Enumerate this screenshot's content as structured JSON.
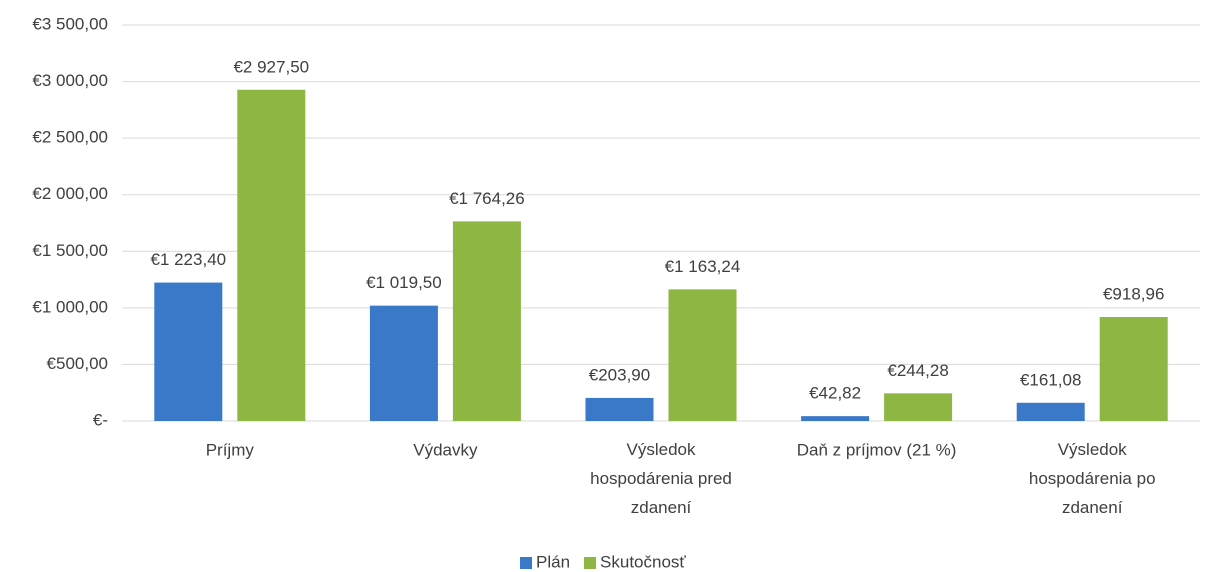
{
  "chart_data": {
    "type": "bar",
    "categories": [
      "Príjmy",
      "Výdavky",
      "Výsledok hospodárenia pred zdanení",
      "Daň z príjmov (21 %)",
      "Výsledok hospodárenia po zdanení"
    ],
    "series": [
      {
        "name": "Plán",
        "color": "#3a78c8",
        "values": [
          1223.4,
          1019.5,
          203.9,
          42.82,
          161.08
        ],
        "value_labels": [
          "€1 223,40",
          "€1 019,50",
          "€203,90",
          "€42,82",
          "€161,08"
        ]
      },
      {
        "name": "Skutočnosť",
        "color": "#8db642",
        "values": [
          2927.5,
          1764.26,
          1163.24,
          244.28,
          918.96
        ],
        "value_labels": [
          "€2 927,50",
          "€1 764,26",
          "€1 163,24",
          "€244,28",
          "€918,96"
        ]
      }
    ],
    "ylim": [
      0,
      3500
    ],
    "yticks": [
      {
        "value": 0,
        "label": "€-"
      },
      {
        "value": 500,
        "label": "€500,00"
      },
      {
        "value": 1000,
        "label": "€1 000,00"
      },
      {
        "value": 1500,
        "label": "€1 500,00"
      },
      {
        "value": 2000,
        "label": "€2 000,00"
      },
      {
        "value": 2500,
        "label": "€2 500,00"
      },
      {
        "value": 3000,
        "label": "€3 000,00"
      },
      {
        "value": 3500,
        "label": "€3 500,00"
      }
    ],
    "grid": true,
    "legend": "bottom"
  }
}
